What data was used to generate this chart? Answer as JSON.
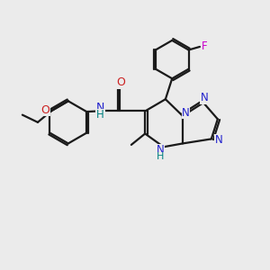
{
  "bg_color": "#ebebeb",
  "bond_color": "#1a1a1a",
  "N_color": "#2020cc",
  "O_color": "#cc2020",
  "F_color": "#cc00cc",
  "H_color": "#008080",
  "line_width": 1.6,
  "figsize": [
    3.0,
    3.0
  ],
  "dpi": 100,
  "xlim": [
    0,
    10
  ],
  "ylim": [
    0,
    10
  ]
}
